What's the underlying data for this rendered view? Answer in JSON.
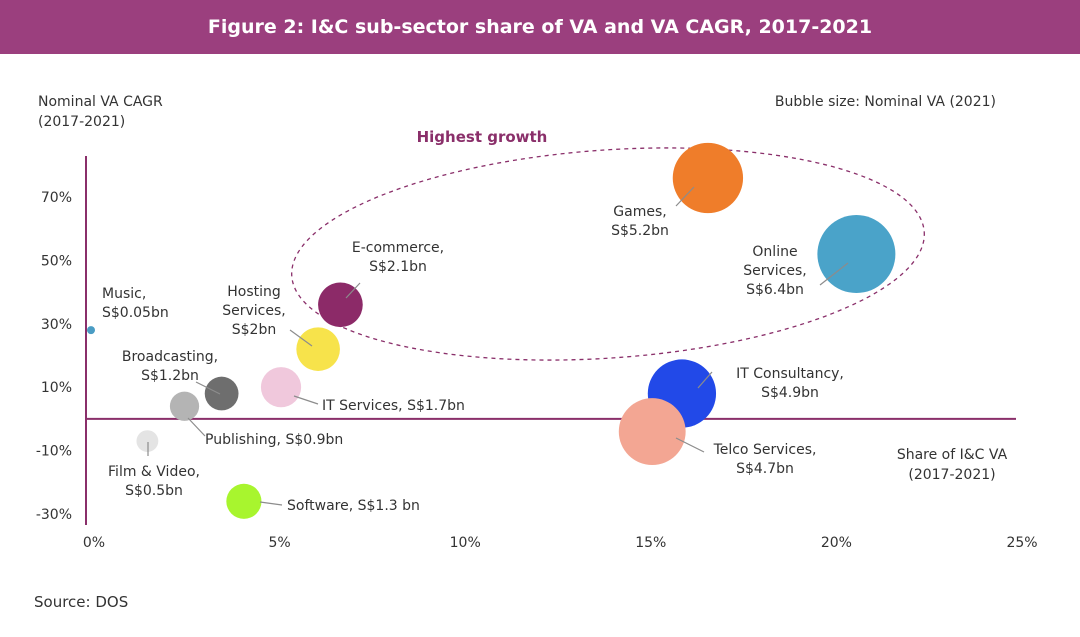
{
  "header": {
    "title": "Figure 2: I&C sub-sector share of VA and VA CAGR, 2017-2021"
  },
  "footer": {
    "source": "Source: DOS"
  },
  "chart_data": {
    "type": "bubble",
    "title": "Figure 2: I&C sub-sector share of VA and VA CAGR, 2017-2021",
    "ylabel_lines": [
      "Nominal VA CAGR",
      "(2017-2021)"
    ],
    "xlabel_lines": [
      "Share of I&C VA",
      "(2017-2021)"
    ],
    "size_legend": "Bubble size: Nominal VA (2021)",
    "annotation": "Highest growth",
    "xlim": [
      0,
      25
    ],
    "ylim": [
      -30,
      80
    ],
    "x_ticks": [
      "0%",
      "5%",
      "10%",
      "15%",
      "20%",
      "25%"
    ],
    "y_ticks": [
      "70%",
      "50%",
      "30%",
      "10%",
      "-10%",
      "-30%"
    ],
    "colors": {
      "header": "#9b3f7e",
      "axis": "#8a2f6a",
      "annotation": "#8a2f6a"
    },
    "points": [
      {
        "name": "Music",
        "value_label": "S$0.05bn",
        "value_bn": 0.05,
        "x": 0,
        "y": 28,
        "color": "#4a9cc4"
      },
      {
        "name": "Film & Video",
        "value_label": "S$0.5bn",
        "value_bn": 0.5,
        "x": 1.6,
        "y": -7,
        "color": "#e4e4e4"
      },
      {
        "name": "Publishing",
        "value_label": "S$0.9bn",
        "value_bn": 0.9,
        "x": 2.6,
        "y": 4,
        "color": "#b4b4b4"
      },
      {
        "name": "Broadcasting",
        "value_label": "S$1.2bn",
        "value_bn": 1.2,
        "x": 3.6,
        "y": 8,
        "color": "#6e6e6e"
      },
      {
        "name": "Software",
        "value_label": "S$1.3 bn",
        "value_bn": 1.3,
        "x": 4.2,
        "y": -26,
        "color": "#a8f52e"
      },
      {
        "name": "IT Services",
        "value_label": "S$1.7bn",
        "value_bn": 1.7,
        "x": 5.2,
        "y": 10,
        "color": "#f0c8dc"
      },
      {
        "name": "Hosting Services",
        "value_label": "S$2bn",
        "value_bn": 2.0,
        "x": 6.2,
        "y": 22,
        "color": "#f7e34b"
      },
      {
        "name": "E-commerce",
        "value_label": "S$2.1bn",
        "value_bn": 2.1,
        "x": 6.8,
        "y": 36,
        "color": "#8c2a68"
      },
      {
        "name": "Games",
        "value_label": "S$5.2bn",
        "value_bn": 5.2,
        "x": 16.7,
        "y": 76,
        "color": "#ef7d2a"
      },
      {
        "name": "Online Services",
        "value_label": "S$6.4bn",
        "value_bn": 6.4,
        "x": 20.7,
        "y": 52,
        "color": "#4aa3c9"
      },
      {
        "name": "IT Consultancy",
        "value_label": "S$4.9bn",
        "value_bn": 4.9,
        "x": 16.0,
        "y": 8,
        "color": "#2249e8"
      },
      {
        "name": "Telco Services",
        "value_label": "S$4.7bn",
        "value_bn": 4.7,
        "x": 15.2,
        "y": -4,
        "color": "#f3a693"
      }
    ]
  }
}
